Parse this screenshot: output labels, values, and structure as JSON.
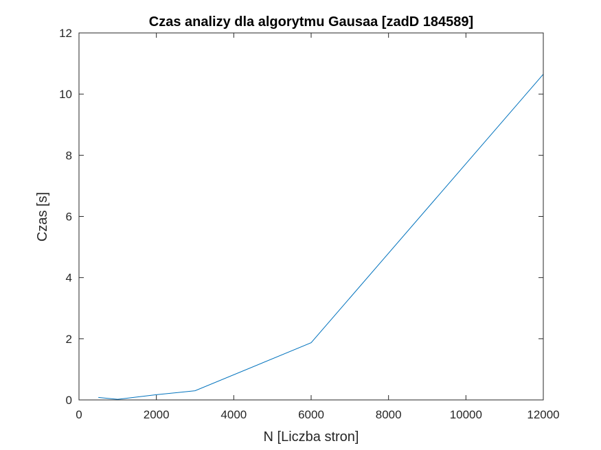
{
  "chart_data": {
    "type": "line",
    "title": "Czas analizy dla algorytmu Gausaa [zadD 184589]",
    "xlabel": "N [Liczba stron]",
    "ylabel": "Czas [s]",
    "xlim": [
      0,
      12000
    ],
    "ylim": [
      0,
      12
    ],
    "xticks": [
      0,
      2000,
      4000,
      6000,
      8000,
      10000,
      12000
    ],
    "xtick_labels": [
      "0",
      "2000",
      "4000",
      "6000",
      "8000",
      "10000",
      "12000"
    ],
    "yticks": [
      0,
      2,
      4,
      6,
      8,
      10,
      12
    ],
    "ytick_labels": [
      "0",
      "2",
      "4",
      "6",
      "8",
      "10",
      "12"
    ],
    "grid": false,
    "series": [
      {
        "color": "#0072BD",
        "x": [
          500,
          1000,
          2000,
          3000,
          6000,
          12000
        ],
        "y": [
          0.08,
          0.02,
          0.17,
          0.3,
          1.87,
          10.65
        ]
      }
    ]
  }
}
